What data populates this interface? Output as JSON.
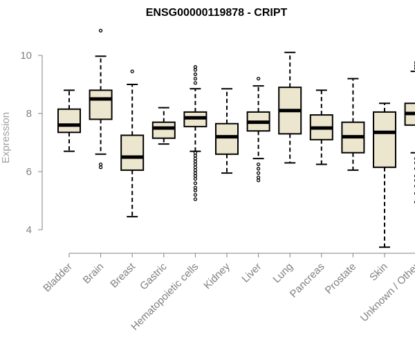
{
  "chart_data": {
    "type": "boxplot",
    "title": "ENSG00000119878 - CRIPT",
    "xlabel": "",
    "ylabel": "Expression",
    "ylim": [
      3.3,
      11.2
    ],
    "yticks": [
      4,
      6,
      8,
      10
    ],
    "categories": [
      "Bladder",
      "Brain",
      "Breast",
      "Gastric",
      "Hematopoietic cells",
      "Kidney",
      "Liver",
      "Lung",
      "Pancreas",
      "Prostate",
      "Skin",
      "Unknown / Other"
    ],
    "boxes": [
      {
        "min": 6.7,
        "q1": 7.35,
        "median": 7.6,
        "q3": 8.15,
        "max": 8.8,
        "outliers": []
      },
      {
        "min": 6.6,
        "q1": 7.8,
        "median": 8.5,
        "q3": 8.8,
        "max": 9.97,
        "outliers": [
          10.85,
          6.25,
          6.15
        ]
      },
      {
        "min": 4.45,
        "q1": 6.05,
        "median": 6.5,
        "q3": 7.25,
        "max": 9.0,
        "outliers": [
          9.45
        ]
      },
      {
        "min": 6.95,
        "q1": 7.15,
        "median": 7.5,
        "q3": 7.7,
        "max": 8.2,
        "outliers": []
      },
      {
        "min": 6.7,
        "q1": 7.55,
        "median": 7.85,
        "q3": 8.05,
        "max": 8.85,
        "outliers": [
          9.6,
          9.5,
          9.35,
          9.2,
          9.05,
          6.65,
          6.55,
          6.45,
          6.35,
          6.25,
          6.15,
          6.05,
          5.95,
          5.85,
          5.75,
          5.6,
          5.45,
          5.35,
          5.2,
          5.05
        ]
      },
      {
        "min": 5.95,
        "q1": 6.6,
        "median": 7.2,
        "q3": 7.65,
        "max": 8.85,
        "outliers": []
      },
      {
        "min": 6.45,
        "q1": 7.4,
        "median": 7.7,
        "q3": 8.05,
        "max": 8.95,
        "outliers": [
          9.2,
          6.25,
          6.1,
          5.95,
          5.8,
          5.7
        ]
      },
      {
        "min": 6.3,
        "q1": 7.3,
        "median": 8.1,
        "q3": 8.9,
        "max": 10.1,
        "outliers": []
      },
      {
        "min": 6.25,
        "q1": 7.1,
        "median": 7.5,
        "q3": 7.95,
        "max": 8.8,
        "outliers": []
      },
      {
        "min": 6.05,
        "q1": 6.65,
        "median": 7.2,
        "q3": 7.7,
        "max": 9.2,
        "outliers": []
      },
      {
        "min": 3.4,
        "q1": 6.15,
        "median": 7.35,
        "q3": 8.05,
        "max": 8.35,
        "outliers": []
      },
      {
        "min": 6.65,
        "q1": 7.6,
        "median": 8.0,
        "q3": 8.35,
        "max": 9.45,
        "outliers": [
          9.75,
          9.65,
          9.55,
          6.45,
          6.3,
          6.1,
          5.85,
          5.7,
          5.5,
          5.25,
          4.95
        ]
      }
    ]
  },
  "colors": {
    "box_fill": "#ede6ce",
    "stroke": "#000000",
    "axis": "#808080",
    "title": "#000000",
    "ylabel": "#a0a0a0"
  }
}
